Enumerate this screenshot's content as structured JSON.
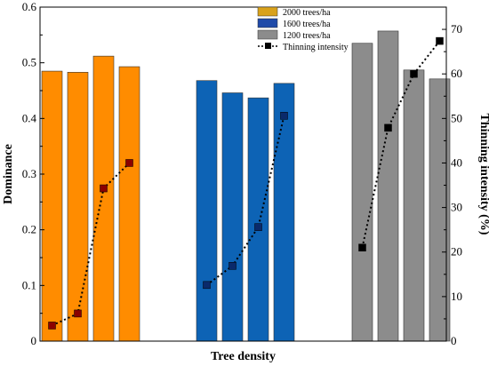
{
  "chart_data": {
    "type": "bar",
    "xlabel": "Tree density",
    "ylabel": "Dominance",
    "y2label": "Thinning intensity (%)",
    "ylim": [
      0,
      0.6
    ],
    "yticks": [
      0,
      0.1,
      0.2,
      0.3,
      0.4,
      0.5,
      0.6
    ],
    "y2lim": [
      0,
      75
    ],
    "y2ticks": [
      0,
      10,
      20,
      30,
      40,
      50,
      60,
      70
    ],
    "legend_position": "top-center",
    "groups": [
      {
        "name": "2000 trees/ha",
        "color": "#FF8C00",
        "legend_color": "#D9A21B",
        "bar_values": [
          0.485,
          0.483,
          0.512,
          0.493
        ],
        "thinning_intensity": [
          3.5,
          6.2,
          34.3,
          40.0
        ]
      },
      {
        "name": "1600 trees/ha",
        "color": "#0D63B5",
        "legend_color": "#1F4AA8",
        "bar_values": [
          0.468,
          0.446,
          0.437,
          0.463
        ],
        "thinning_intensity": [
          12.6,
          16.9,
          25.6,
          50.6
        ]
      },
      {
        "name": "1200 trees/ha",
        "color": "#8C8C8C",
        "legend_color": "#8C8C8C",
        "bar_values": [
          0.535,
          0.557,
          0.487,
          0.471
        ],
        "thinning_intensity": [
          21.0,
          47.9,
          60.0,
          67.4
        ]
      }
    ],
    "line_series_name": "Thinning intensity",
    "line_color": "#000000",
    "marker_color_per_group": [
      "#8B0000",
      "#0A2A6B",
      "#000000"
    ]
  }
}
